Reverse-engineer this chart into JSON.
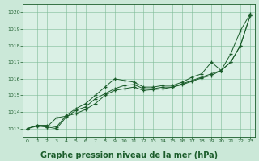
{
  "bg_color": "#cbe8d8",
  "plot_bg_color": "#daf0e5",
  "grid_color": "#7dbb96",
  "line_color": "#1a5c2a",
  "marker_color": "#1a5c2a",
  "xlabel": "Graphe pression niveau de la mer (hPa)",
  "xlabel_fontsize": 7,
  "ylim": [
    1012.5,
    1020.5
  ],
  "xlim": [
    -0.5,
    23.5
  ],
  "yticks": [
    1013,
    1014,
    1015,
    1016,
    1017,
    1018,
    1019,
    1020
  ],
  "xticks": [
    0,
    1,
    2,
    3,
    4,
    5,
    6,
    7,
    8,
    9,
    10,
    11,
    12,
    13,
    14,
    15,
    16,
    17,
    18,
    19,
    20,
    21,
    22,
    23
  ],
  "series": [
    [
      1013.0,
      1013.2,
      1013.2,
      1013.1,
      1013.8,
      1014.2,
      1014.5,
      1015.0,
      1015.5,
      1016.0,
      1015.9,
      1015.8,
      1015.5,
      1015.5,
      1015.6,
      1015.6,
      1015.8,
      1016.1,
      1016.3,
      1017.0,
      1016.5,
      1017.5,
      1018.9,
      1019.9
    ],
    [
      1013.0,
      1013.2,
      1013.1,
      1013.0,
      1013.7,
      1014.1,
      1014.3,
      1014.8,
      1015.1,
      1015.4,
      1015.6,
      1015.65,
      1015.4,
      1015.4,
      1015.5,
      1015.5,
      1015.7,
      1015.9,
      1016.1,
      1016.3,
      1016.5,
      1017.0,
      1018.0,
      1019.8
    ],
    [
      1013.0,
      1013.15,
      1013.1,
      1013.65,
      1013.75,
      1013.9,
      1014.15,
      1014.5,
      1015.0,
      1015.3,
      1015.4,
      1015.5,
      1015.3,
      1015.35,
      1015.4,
      1015.5,
      1015.65,
      1015.85,
      1016.05,
      1016.2,
      1016.5,
      1017.0,
      1018.0,
      1019.8
    ]
  ]
}
